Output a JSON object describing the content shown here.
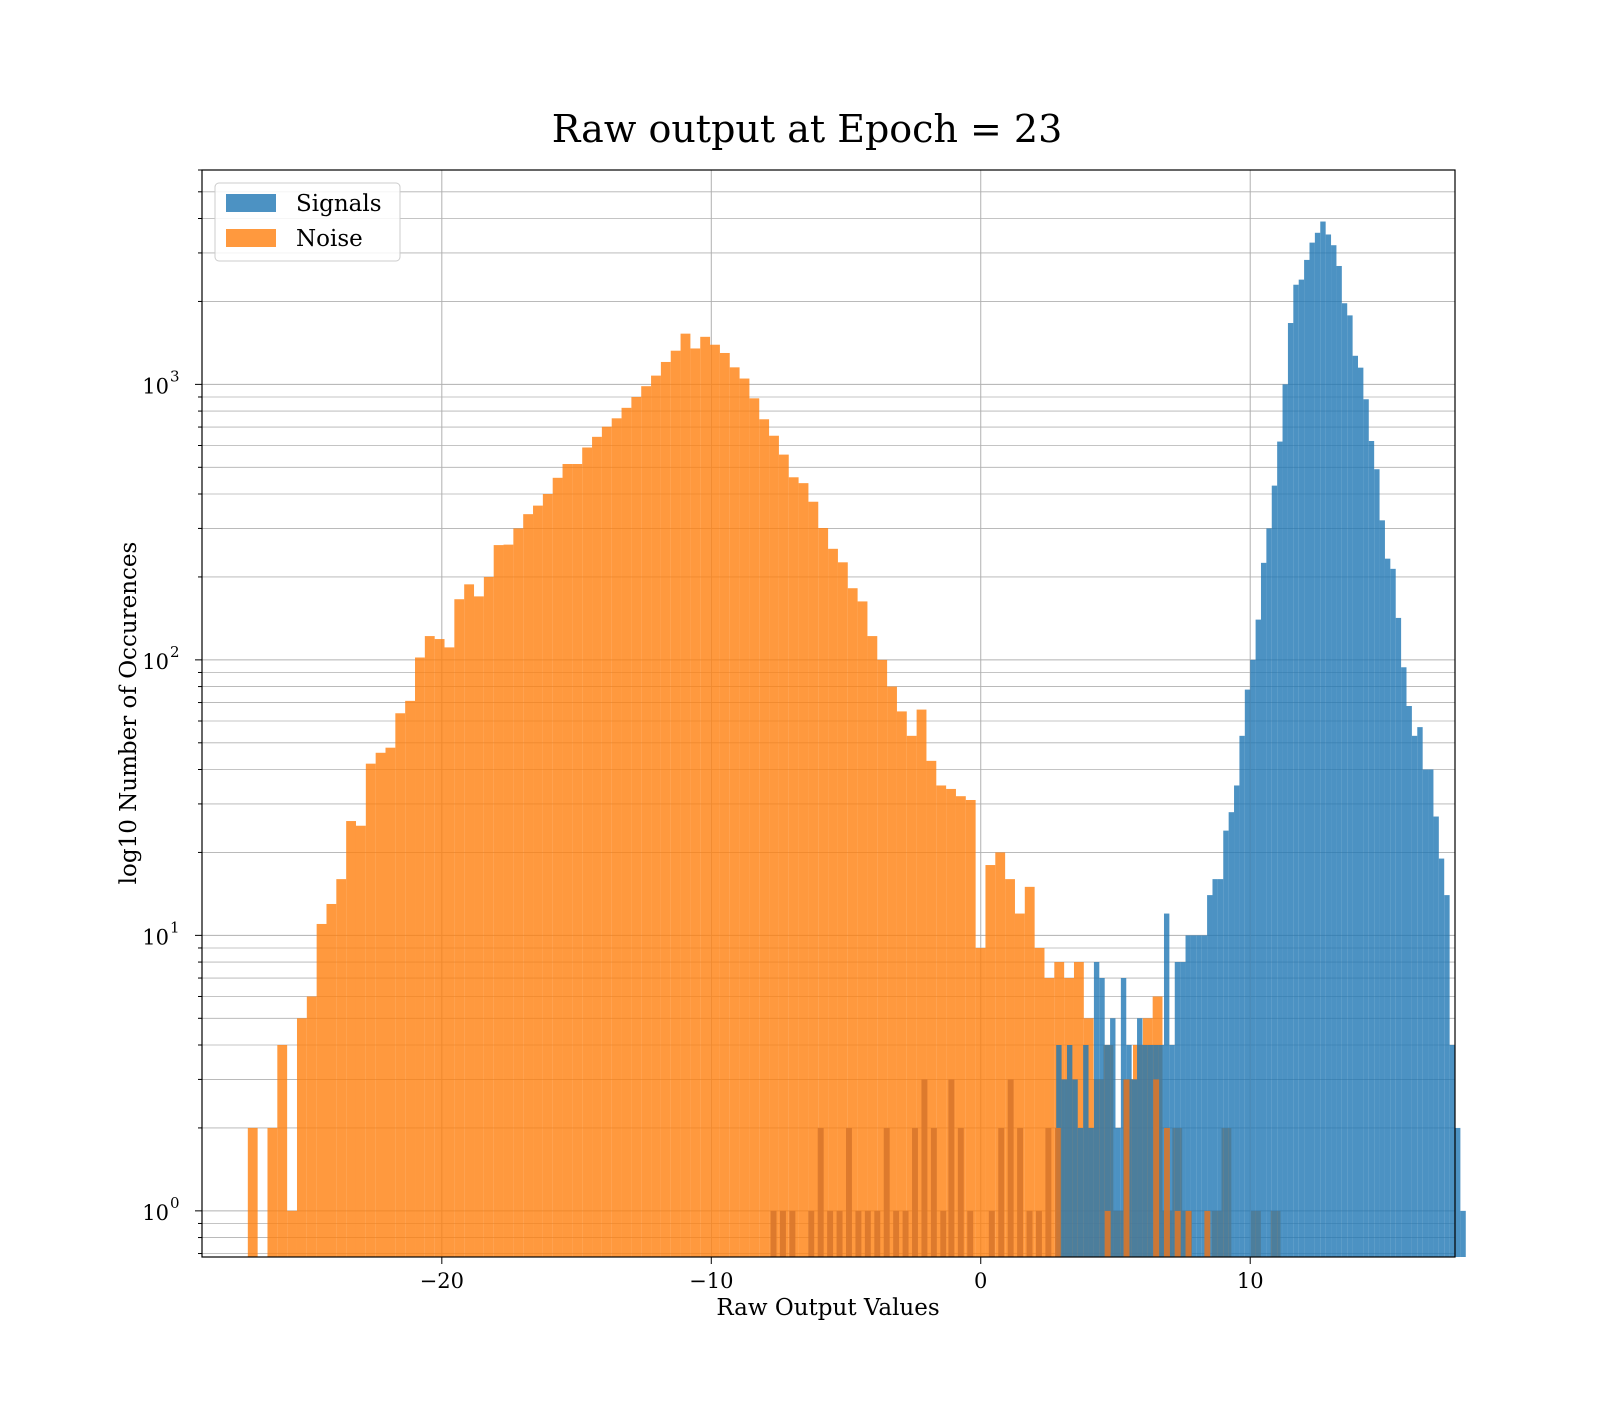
{
  "chart_data": {
    "type": "bar",
    "title": "Raw output at Epoch = 23",
    "xlabel": "Raw Output Values",
    "ylabel": "log10 Number of Occurences",
    "xlim": [
      -28.9,
      17.6
    ],
    "ylim": [
      0.68,
      6000
    ],
    "yscale": "log",
    "grid": true,
    "legend_position": "top-left",
    "x_ticks": [
      {
        "value": -20,
        "label": "−20"
      },
      {
        "value": -10,
        "label": "−10"
      },
      {
        "value": 0,
        "label": "0"
      },
      {
        "value": 10,
        "label": "10"
      }
    ],
    "y_ticks": [
      {
        "value": 1,
        "base": "10",
        "exp": "0"
      },
      {
        "value": 10,
        "base": "10",
        "exp": "1"
      },
      {
        "value": 100,
        "base": "10",
        "exp": "2"
      },
      {
        "value": 1000,
        "base": "10",
        "exp": "3"
      }
    ],
    "series": [
      {
        "name": "Noise",
        "color": "#ff7f0e",
        "x_start": -27.2,
        "bin_width": 0.365,
        "values": [
          2,
          0,
          2,
          4,
          1,
          5,
          6,
          11,
          13,
          16,
          26,
          25,
          42,
          46,
          48,
          64,
          71,
          102,
          122,
          119,
          111,
          166,
          188,
          170,
          200,
          261,
          262,
          300,
          338,
          363,
          400,
          458,
          514,
          514,
          590,
          645,
          702,
          753,
          822,
          900,
          985,
          1076,
          1206,
          1325,
          1528,
          1350,
          1488,
          1393,
          1300,
          1153,
          1050,
          890,
          747,
          651,
          556,
          460,
          438,
          375,
          301,
          253,
          226,
          182,
          163,
          122,
          100,
          80,
          65,
          53,
          66,
          43,
          35,
          34,
          32,
          31,
          9,
          18,
          20,
          16,
          12,
          15,
          9,
          7,
          8,
          7,
          8,
          5,
          3,
          4,
          1,
          3,
          4,
          5,
          6,
          1,
          2,
          1,
          0,
          0,
          1,
          2,
          0,
          0,
          1,
          0,
          1
        ]
      },
      {
        "name": "Signals",
        "color": "#1f77b4",
        "x_start": 2.8,
        "bin_width": 0.2,
        "values": [
          4,
          3,
          4,
          3,
          2,
          4,
          2,
          8,
          7,
          4,
          5,
          2,
          7,
          4,
          3,
          5,
          4,
          4,
          4,
          4,
          12,
          4,
          8,
          8,
          10,
          10,
          10,
          10,
          14,
          16,
          16,
          24,
          28,
          35,
          53,
          78,
          100,
          140,
          225,
          300,
          429,
          620,
          1000,
          1670,
          2300,
          2400,
          2830,
          3270,
          3550,
          3900,
          3500,
          3200,
          2690,
          1970,
          1780,
          1270,
          1150,
          883,
          623,
          492,
          321,
          233,
          214,
          142,
          94,
          68,
          53,
          57,
          40,
          40,
          27,
          19,
          14,
          4,
          2,
          1
        ]
      }
    ],
    "overlap_bins": [
      {
        "x": -7.8,
        "v": 1
      },
      {
        "x": -7.45,
        "v": 1
      },
      {
        "x": -7.1,
        "v": 1
      },
      {
        "x": -6.4,
        "v": 1
      },
      {
        "x": -6.05,
        "v": 2
      },
      {
        "x": -5.7,
        "v": 1
      },
      {
        "x": -5.35,
        "v": 1
      },
      {
        "x": -5.0,
        "v": 2
      },
      {
        "x": -4.65,
        "v": 1
      },
      {
        "x": -4.3,
        "v": 1
      },
      {
        "x": -3.95,
        "v": 1
      },
      {
        "x": -3.6,
        "v": 2
      },
      {
        "x": -3.25,
        "v": 1
      },
      {
        "x": -2.9,
        "v": 1
      },
      {
        "x": -2.55,
        "v": 2
      },
      {
        "x": -2.2,
        "v": 3
      },
      {
        "x": -1.85,
        "v": 2
      },
      {
        "x": -1.5,
        "v": 1
      },
      {
        "x": -1.2,
        "v": 3
      },
      {
        "x": -0.85,
        "v": 2
      },
      {
        "x": -0.5,
        "v": 1
      },
      {
        "x": 0.3,
        "v": 1
      },
      {
        "x": 0.65,
        "v": 2
      },
      {
        "x": 1.0,
        "v": 3
      },
      {
        "x": 1.35,
        "v": 2
      },
      {
        "x": 1.7,
        "v": 1
      },
      {
        "x": 2.05,
        "v": 1
      },
      {
        "x": 2.4,
        "v": 2
      },
      {
        "x": 2.75,
        "v": 2
      },
      {
        "x": 4.6,
        "v": 1
      },
      {
        "x": 5.3,
        "v": 3
      },
      {
        "x": 6.4,
        "v": 3
      },
      {
        "x": 6.8,
        "v": 2
      },
      {
        "x": 7.2,
        "v": 1
      },
      {
        "x": 7.6,
        "v": 1
      },
      {
        "x": 8.3,
        "v": 1
      }
    ]
  }
}
